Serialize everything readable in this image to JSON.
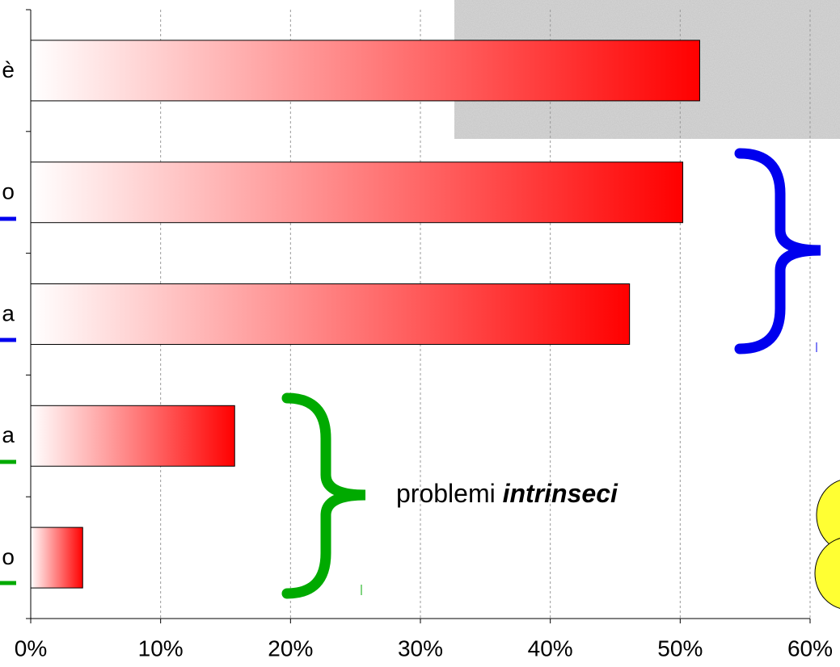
{
  "chart_data": {
    "type": "bar",
    "orientation": "horizontal",
    "categories": [
      "è",
      "o",
      "a",
      "a",
      "o"
    ],
    "values": [
      51.5,
      50.2,
      46.1,
      15.7,
      4.0
    ],
    "color": "#ff0000",
    "xlim": [
      0,
      60
    ],
    "xticks": [
      {
        "value": 0,
        "label": "0%"
      },
      {
        "value": 10,
        "label": "10%"
      },
      {
        "value": 20,
        "label": "20%"
      },
      {
        "value": 30,
        "label": "30%"
      },
      {
        "value": 40,
        "label": "40%"
      },
      {
        "value": 50,
        "label": "50%"
      },
      {
        "value": 60,
        "label": "60%"
      }
    ],
    "grid": true,
    "annotation": {
      "plain": "problemi",
      "emphasis": "intrinseci"
    }
  }
}
